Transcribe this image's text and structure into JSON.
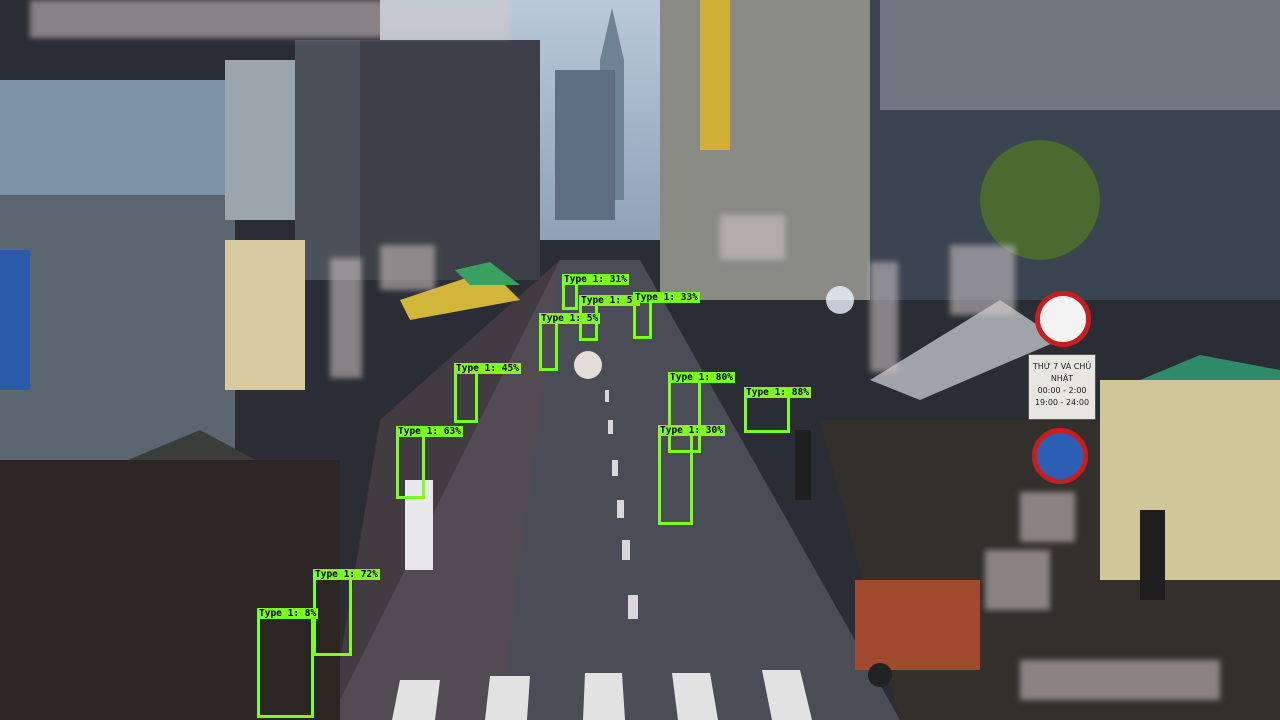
{
  "signs": {
    "schedule": [
      "THỨ 7 VÀ CHỦ NHẬT",
      "00:00 - 2:00",
      "19:00 - 24:00"
    ]
  },
  "detections": [
    {
      "label": "Type 1: 31%"
    },
    {
      "label": "Type 1: 5%"
    },
    {
      "label": "Type 1: 33%"
    },
    {
      "label": "Type 1: 5%"
    },
    {
      "label": "Type 1: 45%"
    },
    {
      "label": "Type 1: 80%"
    },
    {
      "label": "Type 1: 88%"
    },
    {
      "label": "Type 1: 63%"
    },
    {
      "label": "Type 1: 30%"
    },
    {
      "label": "Type 1: 72%"
    },
    {
      "label": "Type 1: 8%"
    }
  ],
  "colors": {
    "box": "#7cff1f"
  }
}
